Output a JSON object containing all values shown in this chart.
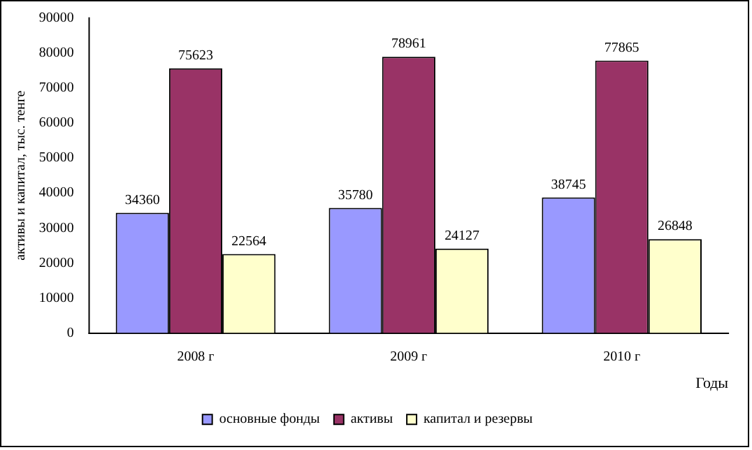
{
  "chart_data": {
    "type": "bar",
    "xlabel": "Годы",
    "ylabel": "активы и капитал, тыс. тенге",
    "categories": [
      "2008 г",
      "2009 г",
      "2010 г"
    ],
    "series": [
      {
        "name": "основные фонды",
        "color": "#9999ff",
        "values": [
          34360,
          35780,
          38745
        ]
      },
      {
        "name": "активы",
        "color": "#993366",
        "values": [
          75623,
          78961,
          77865
        ]
      },
      {
        "name": "капитал и резервы",
        "color": "#ffffcc",
        "values": [
          22564,
          24127,
          26848
        ]
      }
    ],
    "ylim": [
      0,
      90000
    ],
    "yticks": [
      0,
      10000,
      20000,
      30000,
      40000,
      50000,
      60000,
      70000,
      80000,
      90000
    ],
    "grid": false,
    "legend": "bottom",
    "data_labels": true
  }
}
